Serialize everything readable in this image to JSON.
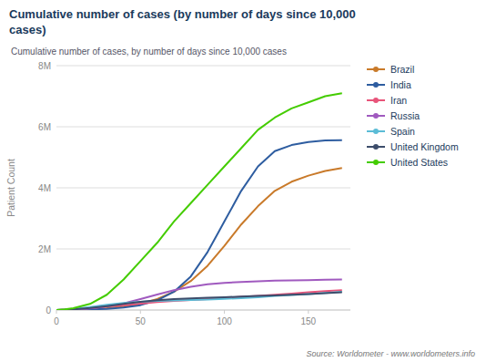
{
  "chart_data": {
    "type": "line",
    "title": "Cumulative number of cases (by number of days since 10,000\ncases)",
    "subtitle": "Cumulative number of cases, by number of days since 10,000 cases",
    "y_label": "Patient Count",
    "source": "Source: Worldometer - www.worldometers.info",
    "x": [
      0,
      5,
      10,
      20,
      30,
      40,
      50,
      60,
      70,
      80,
      90,
      100,
      110,
      120,
      130,
      140,
      150,
      160,
      170
    ],
    "xlim": [
      0,
      175
    ],
    "xticks": [
      0,
      50,
      100,
      150
    ],
    "ylim": [
      0,
      8000000
    ],
    "yticks": [
      0,
      {
        "value": 2000000,
        "label": "2M"
      },
      {
        "value": 4000000,
        "label": "4M"
      },
      {
        "value": 6000000,
        "label": "6M"
      },
      {
        "value": 8000000,
        "label": "8M"
      }
    ],
    "grid": true,
    "legend": "right",
    "series": [
      {
        "name": "Brazil",
        "color": "#c97a2a",
        "values": [
          0,
          5000,
          12000,
          30000,
          60000,
          110000,
          200000,
          360000,
          600000,
          950000,
          1450000,
          2100000,
          2800000,
          3400000,
          3900000,
          4200000,
          4400000,
          4550000,
          4650000
        ]
      },
      {
        "name": "India",
        "color": "#2e5da0",
        "values": [
          0,
          3000,
          8000,
          20000,
          40000,
          80000,
          160000,
          320000,
          600000,
          1100000,
          1900000,
          2900000,
          3900000,
          4700000,
          5200000,
          5400000,
          5500000,
          5550000,
          5560000
        ]
      },
      {
        "name": "Iran",
        "color": "#e8547a",
        "values": [
          0,
          8000,
          20000,
          60000,
          110000,
          160000,
          210000,
          260000,
          300000,
          330000,
          360000,
          400000,
          430000,
          460000,
          500000,
          540000,
          580000,
          620000,
          650000
        ]
      },
      {
        "name": "Russia",
        "color": "#a05abf",
        "values": [
          0,
          5000,
          15000,
          50000,
          120000,
          220000,
          360000,
          510000,
          650000,
          760000,
          840000,
          890000,
          920000,
          940000,
          960000,
          970000,
          980000,
          990000,
          1000000
        ]
      },
      {
        "name": "Spain",
        "color": "#5bbcd6",
        "values": [
          0,
          12000,
          35000,
          100000,
          175000,
          230000,
          270000,
          295000,
          315000,
          330000,
          345000,
          365000,
          390000,
          420000,
          460000,
          490000,
          520000,
          560000,
          600000
        ]
      },
      {
        "name": "United Kingdom",
        "color": "#3d4d6b",
        "values": [
          0,
          8000,
          22000,
          65000,
          130000,
          200000,
          270000,
          320000,
          355000,
          380000,
          400000,
          420000,
          440000,
          460000,
          480000,
          500000,
          520000,
          550000,
          580000
        ]
      },
      {
        "name": "United States",
        "color": "#44cc00",
        "values": [
          0,
          20000,
          60000,
          200000,
          500000,
          1000000,
          1600000,
          2200000,
          2900000,
          3500000,
          4100000,
          4700000,
          5300000,
          5900000,
          6300000,
          6600000,
          6800000,
          7000000,
          7100000
        ]
      }
    ]
  }
}
